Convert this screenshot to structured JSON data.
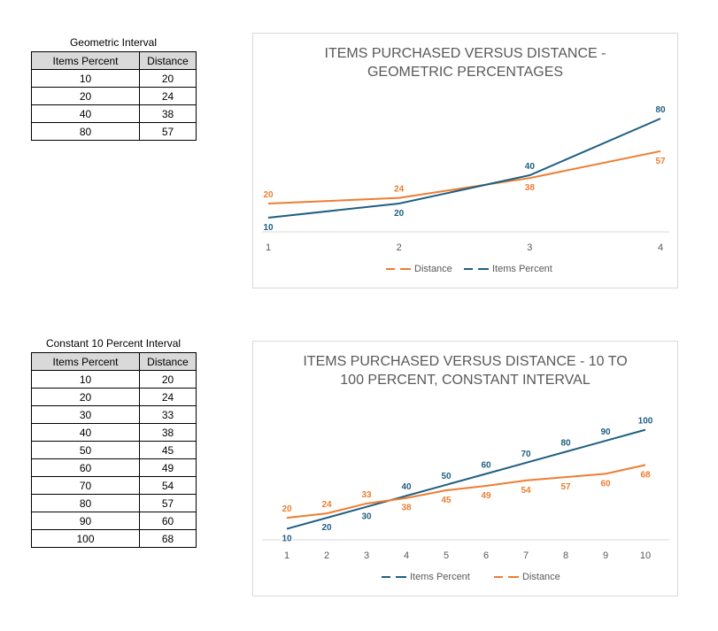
{
  "table1": {
    "title": "Geometric  Interval",
    "headers": [
      "Items Percent",
      "Distance"
    ],
    "rows": [
      [
        "10",
        "20"
      ],
      [
        "20",
        "24"
      ],
      [
        "40",
        "38"
      ],
      [
        "80",
        "57"
      ]
    ]
  },
  "table2": {
    "title": "Constant 10 Percent Interval",
    "headers": [
      "Items Percent",
      "Distance"
    ],
    "rows": [
      [
        "10",
        "20"
      ],
      [
        "20",
        "24"
      ],
      [
        "30",
        "33"
      ],
      [
        "40",
        "38"
      ],
      [
        "50",
        "45"
      ],
      [
        "60",
        "49"
      ],
      [
        "70",
        "54"
      ],
      [
        "80",
        "57"
      ],
      [
        "90",
        "60"
      ],
      [
        "100",
        "68"
      ]
    ]
  },
  "colors": {
    "items": "#1f5f82",
    "distance": "#ed7d31"
  },
  "chart_data": [
    {
      "type": "line",
      "title": "ITEMS PURCHASED VERSUS DISTANCE - GEOMETRIC PERCENTAGES",
      "title_lines": [
        "ITEMS PURCHASED VERSUS DISTANCE -",
        "GEOMETRIC PERCENTAGES"
      ],
      "categories": [
        "1",
        "2",
        "3",
        "4"
      ],
      "ylim": [
        0,
        90
      ],
      "grid": false,
      "legend": "bottom",
      "series": [
        {
          "name": "Distance",
          "values": [
            20,
            24,
            38,
            57
          ],
          "color": "#ed7d31"
        },
        {
          "name": "Items Percent",
          "values": [
            10,
            20,
            40,
            80
          ],
          "color": "#1f5f82"
        }
      ]
    },
    {
      "type": "line",
      "title": "ITEMS PURCHASED VERSUS DISTANCE - 10 TO 100 PERCENT, CONSTANT INTERVAL",
      "title_lines": [
        "ITEMS PURCHASED VERSUS DISTANCE - 10 TO",
        "100 PERCENT, CONSTANT INTERVAL"
      ],
      "categories": [
        "1",
        "2",
        "3",
        "4",
        "5",
        "6",
        "7",
        "8",
        "9",
        "10"
      ],
      "ylim": [
        0,
        100
      ],
      "grid": false,
      "legend": "bottom",
      "series": [
        {
          "name": "Items Percent",
          "values": [
            10,
            20,
            30,
            40,
            50,
            60,
            70,
            80,
            90,
            100
          ],
          "color": "#1f5f82"
        },
        {
          "name": "Distance",
          "values": [
            20,
            24,
            33,
            38,
            45,
            49,
            54,
            57,
            60,
            68
          ],
          "color": "#ed7d31"
        }
      ]
    }
  ]
}
